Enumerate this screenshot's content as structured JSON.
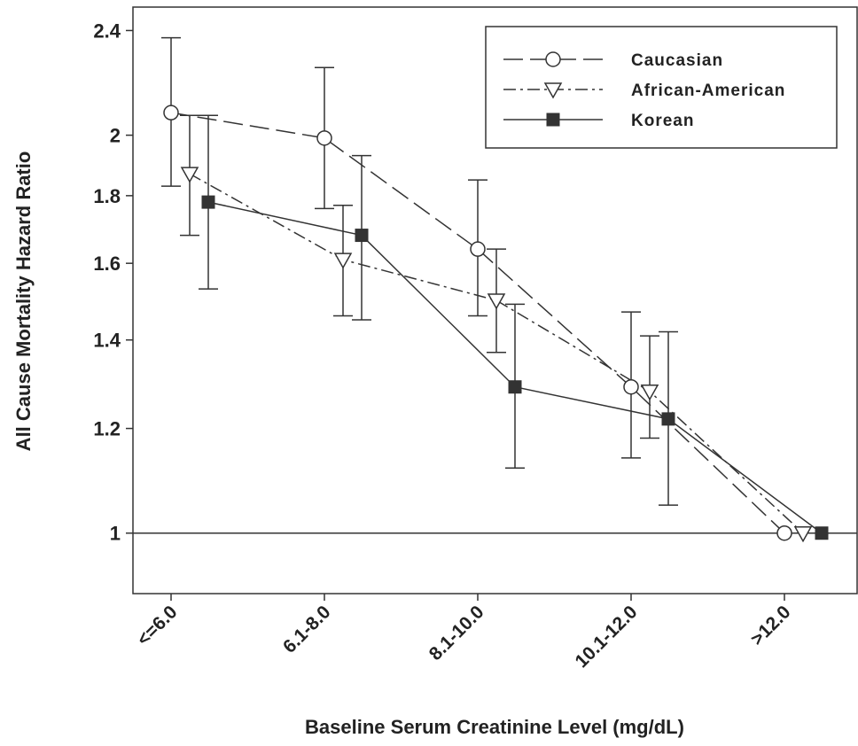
{
  "chart_data": {
    "type": "line",
    "x_label": "Baseline Serum Creatinine Level (mg/dL)",
    "y_label": "All Cause Mortality Hazard Ratio",
    "categories": [
      "<=6.0",
      "6.1-8.0",
      "8.1-10.0",
      "10.1-12.0",
      ">12.0"
    ],
    "y_scale": "log",
    "ylim": [
      0.9,
      2.5
    ],
    "yticks": [
      1,
      1.2,
      1.4,
      1.6,
      1.8,
      2,
      2.4
    ],
    "reference_line": 1,
    "legend_position": "upper right",
    "series": [
      {
        "name": "Caucasian",
        "color": "#333333",
        "marker": "circle",
        "dash": "dashed",
        "values": [
          2.08,
          1.99,
          1.64,
          1.29,
          1.0
        ],
        "lower": [
          1.83,
          1.76,
          1.46,
          1.14,
          null
        ],
        "upper": [
          2.37,
          2.25,
          1.85,
          1.47,
          null
        ]
      },
      {
        "name": "African-American",
        "color": "#333333",
        "marker": "triangle-down",
        "dash": "dashdot",
        "values": [
          1.87,
          1.61,
          1.5,
          1.28,
          1.0
        ],
        "lower": [
          1.68,
          1.46,
          1.37,
          1.18,
          null
        ],
        "upper": [
          2.07,
          1.77,
          1.64,
          1.41,
          null
        ]
      },
      {
        "name": "Korean",
        "color": "#333333",
        "marker": "square",
        "dash": "solid",
        "values": [
          1.78,
          1.68,
          1.29,
          1.22,
          1.0
        ],
        "lower": [
          1.53,
          1.45,
          1.12,
          1.05,
          null
        ],
        "upper": [
          2.07,
          1.93,
          1.49,
          1.42,
          null
        ]
      }
    ]
  }
}
